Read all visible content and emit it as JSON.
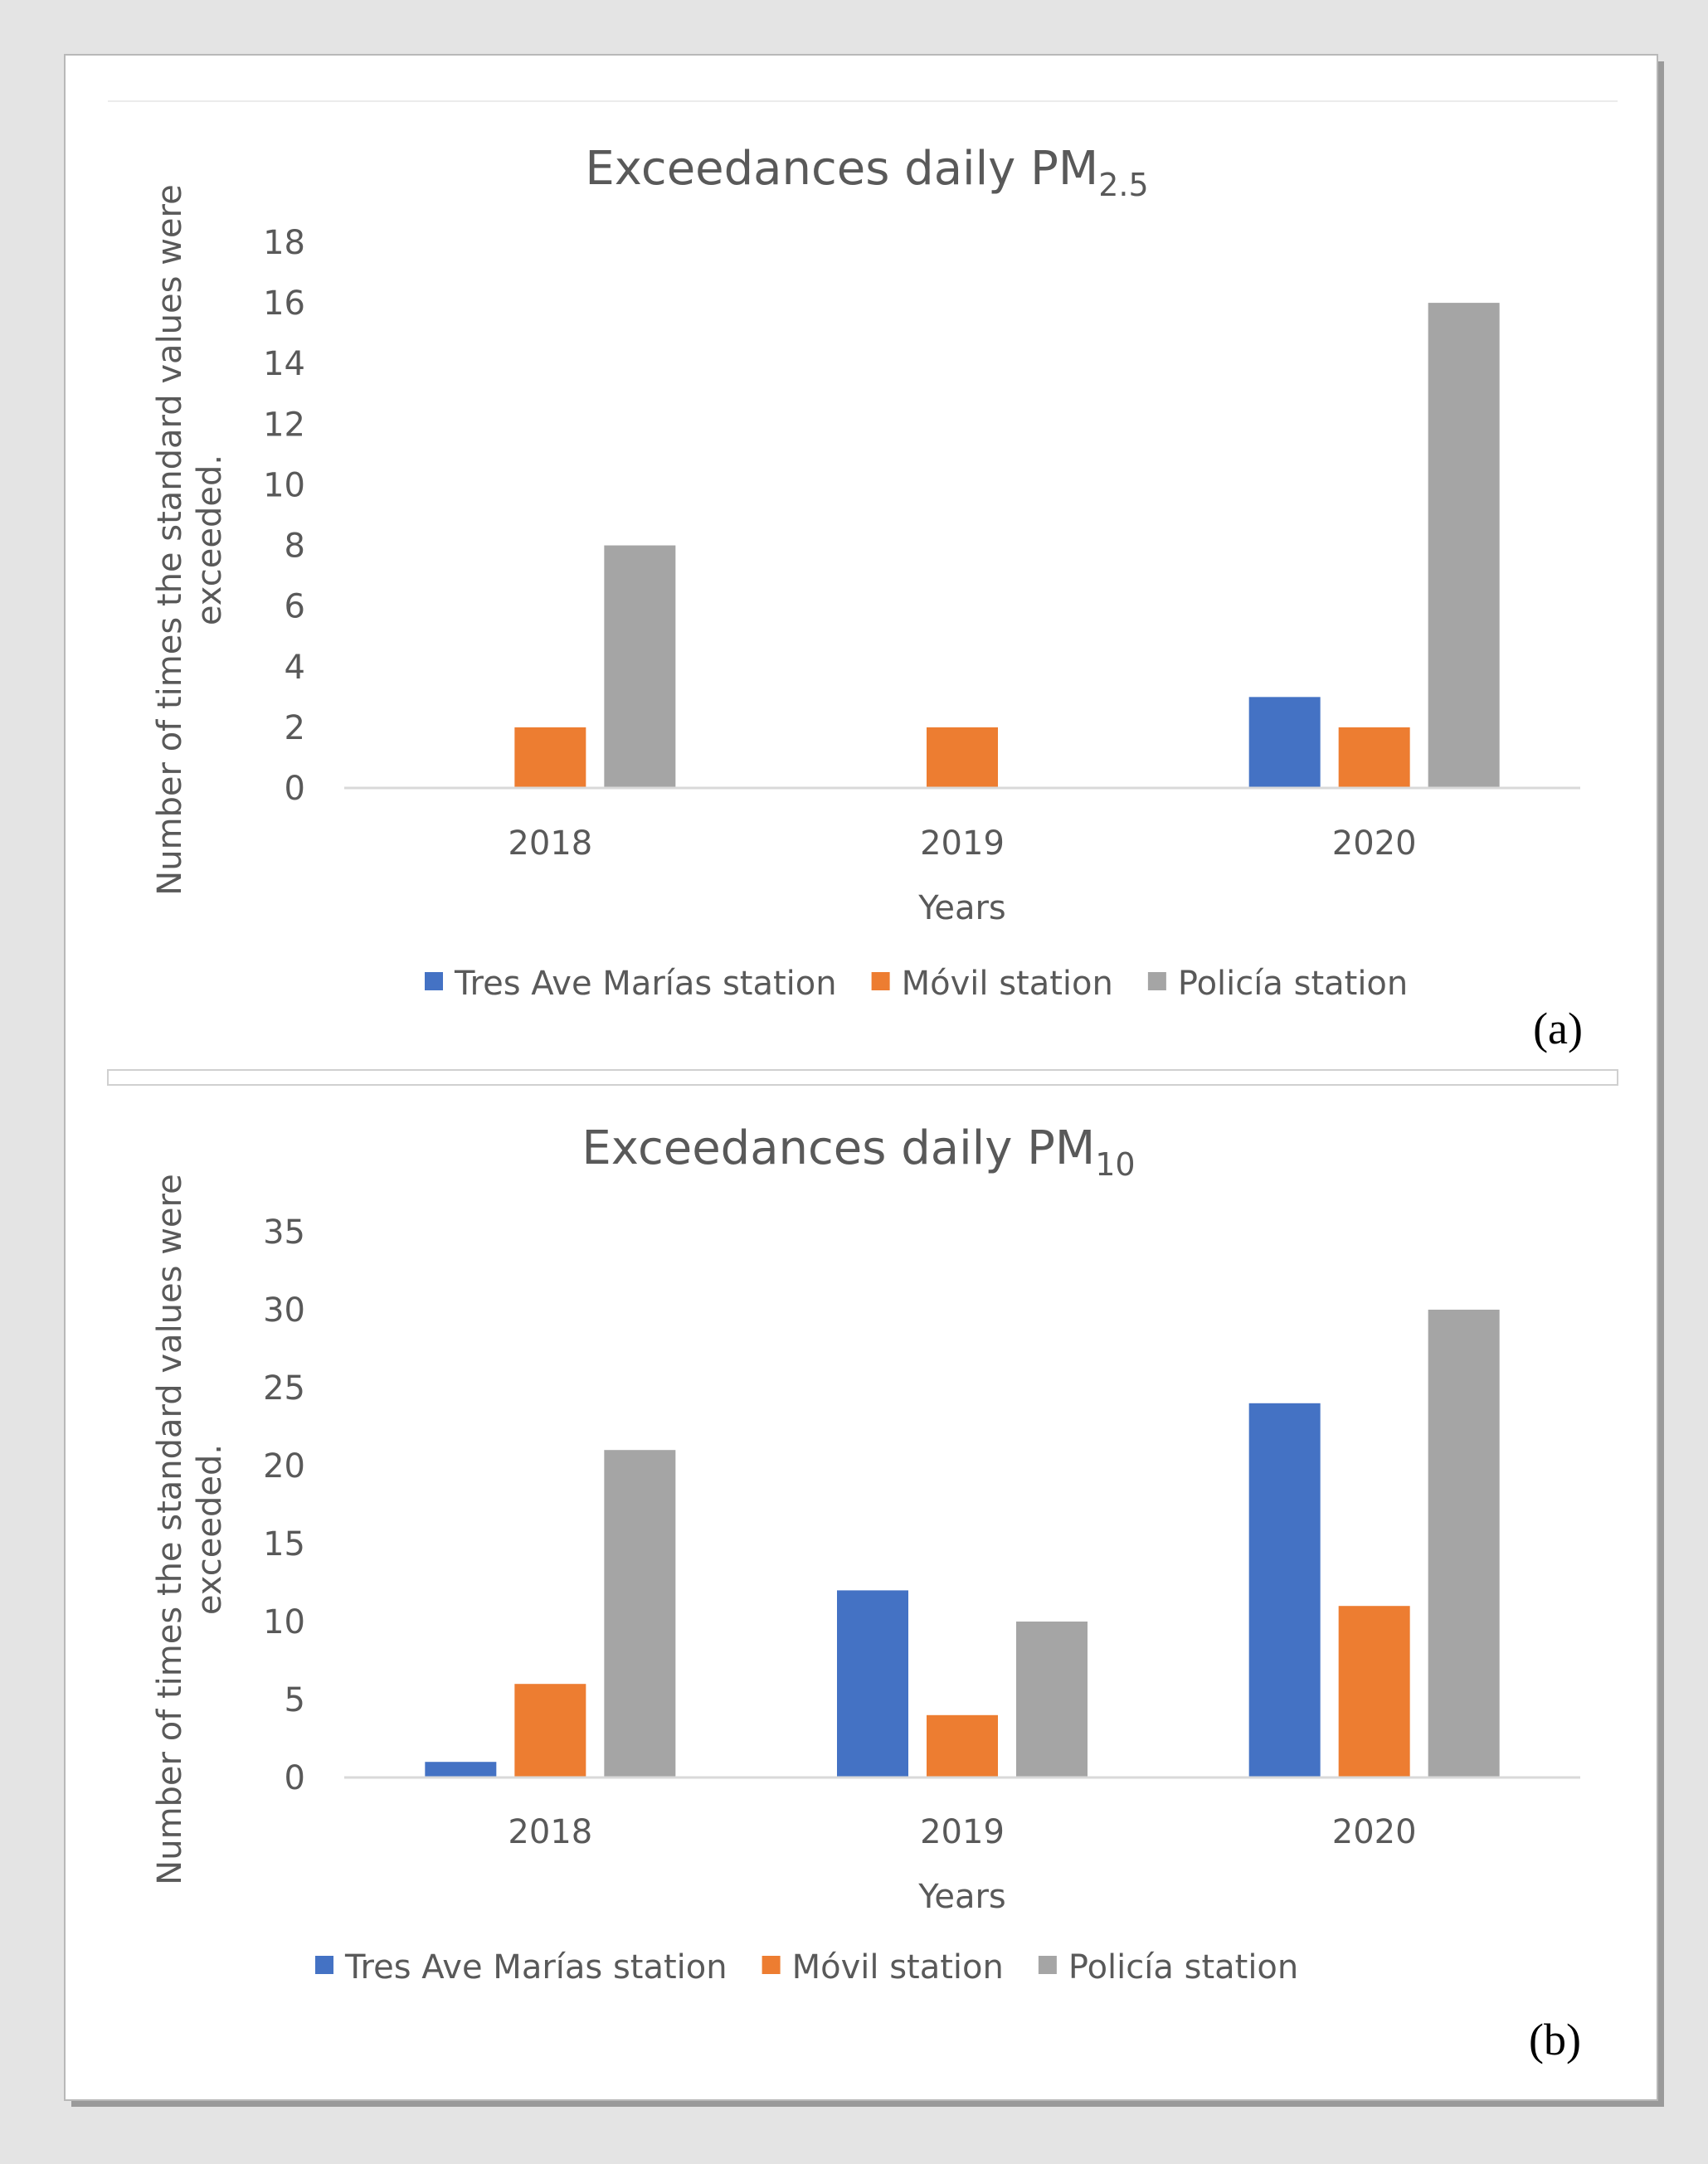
{
  "figure": {
    "colors": {
      "outer_background": "#e4e4e4",
      "card_background": "#ffffff",
      "card_border": "#b8b8b8",
      "text": "#595959",
      "axis_line": "#d9d9d9",
      "separator": "#d0d0d0",
      "panel_label": "#000000"
    }
  },
  "chart_data": [
    {
      "type": "bar",
      "panel_label": "(a)",
      "title": {
        "main": "Exceedances daily PM",
        "subscript": "2.5"
      },
      "xlabel": "Years",
      "ylabel": [
        "Number of times the standard values were",
        "exceeded."
      ],
      "categories": [
        "2018",
        "2019",
        "2020"
      ],
      "ylim": [
        0,
        18
      ],
      "yticks": [
        0,
        2,
        4,
        6,
        8,
        10,
        12,
        14,
        16,
        18
      ],
      "grid": false,
      "legend_position": "bottom",
      "series": [
        {
          "name": "Tres Ave Marías station",
          "color": "#4472c4",
          "values": [
            0,
            0,
            3
          ]
        },
        {
          "name": "Móvil station",
          "color": "#ed7d31",
          "values": [
            2,
            2,
            2
          ]
        },
        {
          "name": "Policía station",
          "color": "#a5a5a5",
          "values": [
            8,
            0,
            16
          ]
        }
      ]
    },
    {
      "type": "bar",
      "panel_label": "(b)",
      "title": {
        "main": "Exceedances daily PM",
        "subscript": "10"
      },
      "xlabel": "Years",
      "ylabel": [
        "Number of times the standard values were",
        "exceeded."
      ],
      "categories": [
        "2018",
        "2019",
        "2020"
      ],
      "ylim": [
        0,
        35
      ],
      "yticks": [
        0,
        5,
        10,
        15,
        20,
        25,
        30,
        35
      ],
      "grid": false,
      "legend_position": "bottom",
      "series": [
        {
          "name": "Tres Ave Marías station",
          "color": "#4472c4",
          "values": [
            1,
            12,
            24
          ]
        },
        {
          "name": "Móvil station",
          "color": "#ed7d31",
          "values": [
            6,
            4,
            11
          ]
        },
        {
          "name": "Policía station",
          "color": "#a5a5a5",
          "values": [
            21,
            10,
            30
          ]
        }
      ]
    }
  ]
}
